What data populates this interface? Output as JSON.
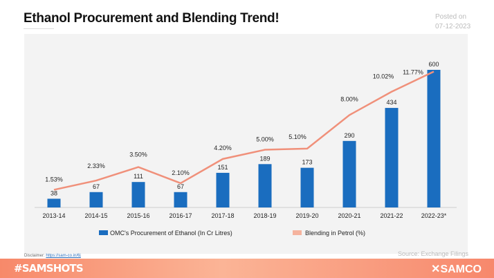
{
  "header": {
    "title": "Ethanol Procurement and Blending Trend!",
    "posted_label": "Posted on",
    "posted_date": "07-12-2023"
  },
  "chart_data": {
    "type": "bar+line",
    "categories": [
      "2013-14",
      "2014-15",
      "2015-16",
      "2016-17",
      "2017-18",
      "2018-19",
      "2019-20",
      "2020-21",
      "2021-22",
      "2022-23*"
    ],
    "series": [
      {
        "name": "OMC's Procurement of Ethanol (In Cr Litres)",
        "type": "bar",
        "color": "#1a6dbf",
        "values": [
          38,
          67,
          111,
          67,
          151,
          189,
          173,
          290,
          434,
          600
        ],
        "labels": [
          "38",
          "67",
          "111",
          "67",
          "151",
          "189",
          "173",
          "290",
          "434",
          "600"
        ]
      },
      {
        "name": "Blending in Petrol (%)",
        "type": "line",
        "color": "#f0907a",
        "values": [
          1.53,
          2.33,
          3.5,
          2.1,
          4.2,
          5.0,
          5.1,
          8.0,
          10.02,
          11.77
        ],
        "labels": [
          "1.53%",
          "2.33%",
          "3.50%",
          "2.10%",
          "4.20%",
          "5.00%",
          "5.10%",
          "8.00%",
          "10.02%",
          "11.77%"
        ]
      }
    ],
    "legend": "bottom",
    "grid": false
  },
  "footer": {
    "disclaimer_label": "Disclaimer:",
    "disclaimer_link": "https://sam-co.in/6j",
    "source": "Source: Exchange Filings",
    "hashtag": "#SAMSHOTS",
    "brand": "SAMCO"
  }
}
